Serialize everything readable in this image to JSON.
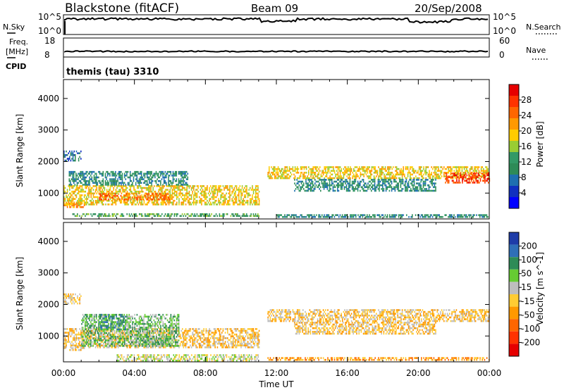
{
  "header": {
    "station": "Blackstone (fitACF)",
    "beam": "Beam 09",
    "date": "20/Sep/2008"
  },
  "left_labels": {
    "nsky": "N.Sky",
    "freq_line1": "Freq.",
    "freq_line2": "[MHz]",
    "cpid": "CPID"
  },
  "right_labels": {
    "nsearch": "N.Search",
    "nave": "Nave"
  },
  "noise_panel": {
    "left_ticks": [
      "10^5",
      "10^0"
    ],
    "right_ticks": [
      "10^5",
      "10^0"
    ]
  },
  "freq_panel": {
    "left_ticks": [
      "18",
      "8"
    ],
    "right_ticks": [
      "60",
      "0"
    ]
  },
  "cpid_text": "themis (tau) 3310",
  "power_bar": {
    "label": "Power [dB]",
    "ticks": [
      "28",
      "24",
      "20",
      "16",
      "12",
      "8",
      "4"
    ],
    "colors": [
      "#e60000",
      "#ff3300",
      "#ff6600",
      "#ff9900",
      "#ffcc00",
      "#99cc33",
      "#339966",
      "#2e8b57",
      "#1e6fb0",
      "#1030c0",
      "#0000ff"
    ]
  },
  "velocity_bar": {
    "label": "Velocity [m s^-1]",
    "ticks": [
      "200",
      "100",
      "50",
      "15",
      "-15",
      "-50",
      "-100",
      "-200"
    ],
    "colors": [
      "#1e3ca8",
      "#2f6fb8",
      "#2e8b57",
      "#66cc33",
      "#bebebe",
      "#ffcc33",
      "#ff9900",
      "#ff6600",
      "#ff3300",
      "#e60000"
    ]
  },
  "chart_data": [
    {
      "type": "heatmap",
      "name": "power",
      "ylabel": "Slant Range [km]",
      "xlabel": "Time UT",
      "x_ticks": [
        "00:00",
        "04:00",
        "08:00",
        "12:00",
        "16:00",
        "20:00",
        "00:00"
      ],
      "y_ticks": [
        1000,
        2000,
        3000,
        4000
      ],
      "xlim": [
        0,
        24
      ],
      "ylim": [
        180,
        4600
      ],
      "bands": [
        {
          "t0": 0.0,
          "t1": 1.0,
          "r0": 2050,
          "r1": 2350,
          "level": 2
        },
        {
          "t0": 0.0,
          "t1": 1.2,
          "r0": 560,
          "r1": 700,
          "level": 7
        },
        {
          "t0": 0.0,
          "t1": 11.0,
          "r0": 650,
          "r1": 1250,
          "level": 6
        },
        {
          "t0": 0.3,
          "t1": 7.0,
          "r0": 1250,
          "r1": 1700,
          "level": 3
        },
        {
          "t0": 2.0,
          "t1": 6.0,
          "r0": 800,
          "r1": 1000,
          "level": 8
        },
        {
          "t0": 0.5,
          "t1": 11.0,
          "r0": 260,
          "r1": 360,
          "level": 4
        },
        {
          "t0": 11.5,
          "t1": 24.0,
          "r0": 1450,
          "r1": 1850,
          "level": 6
        },
        {
          "t0": 13.0,
          "t1": 21.0,
          "r0": 1100,
          "r1": 1450,
          "level": 3
        },
        {
          "t0": 21.5,
          "t1": 24.0,
          "r0": 1350,
          "r1": 1650,
          "level": 9
        },
        {
          "t0": 12.0,
          "t1": 24.0,
          "r0": 230,
          "r1": 330,
          "level": 3
        }
      ]
    },
    {
      "type": "heatmap",
      "name": "velocity",
      "ylabel": "Slant Range [km]",
      "xlabel": "Time UT",
      "x_ticks": [
        "00:00",
        "04:00",
        "08:00",
        "12:00",
        "16:00",
        "20:00",
        "00:00"
      ],
      "y_ticks": [
        1000,
        2000,
        3000,
        4000
      ],
      "xlim": [
        0,
        24
      ],
      "ylim": [
        180,
        4600
      ],
      "bands": [
        {
          "t0": 0.0,
          "t1": 1.0,
          "r0": 2050,
          "r1": 2350,
          "level": 4
        },
        {
          "t0": 0.0,
          "t1": 1.2,
          "r0": 560,
          "r1": 700,
          "level": 4
        },
        {
          "t0": 0.0,
          "t1": 11.0,
          "r0": 650,
          "r1": 1250,
          "level": 4
        },
        {
          "t0": 1.0,
          "t1": 6.5,
          "r0": 700,
          "r1": 1700,
          "level": 6
        },
        {
          "t0": 2.0,
          "t1": 3.5,
          "r0": 1200,
          "r1": 1700,
          "level": 7
        },
        {
          "t0": 4.0,
          "t1": 6.0,
          "r0": 750,
          "r1": 1000,
          "level": 6
        },
        {
          "t0": 3.0,
          "t1": 11.0,
          "r0": 230,
          "r1": 420,
          "level": 5
        },
        {
          "t0": 11.5,
          "t1": 24.0,
          "r0": 1450,
          "r1": 1850,
          "level": 4
        },
        {
          "t0": 13.0,
          "t1": 21.0,
          "r0": 1100,
          "r1": 1450,
          "level": 4
        },
        {
          "t0": 11.5,
          "t1": 24.0,
          "r0": 230,
          "r1": 330,
          "level": 3
        }
      ]
    }
  ]
}
